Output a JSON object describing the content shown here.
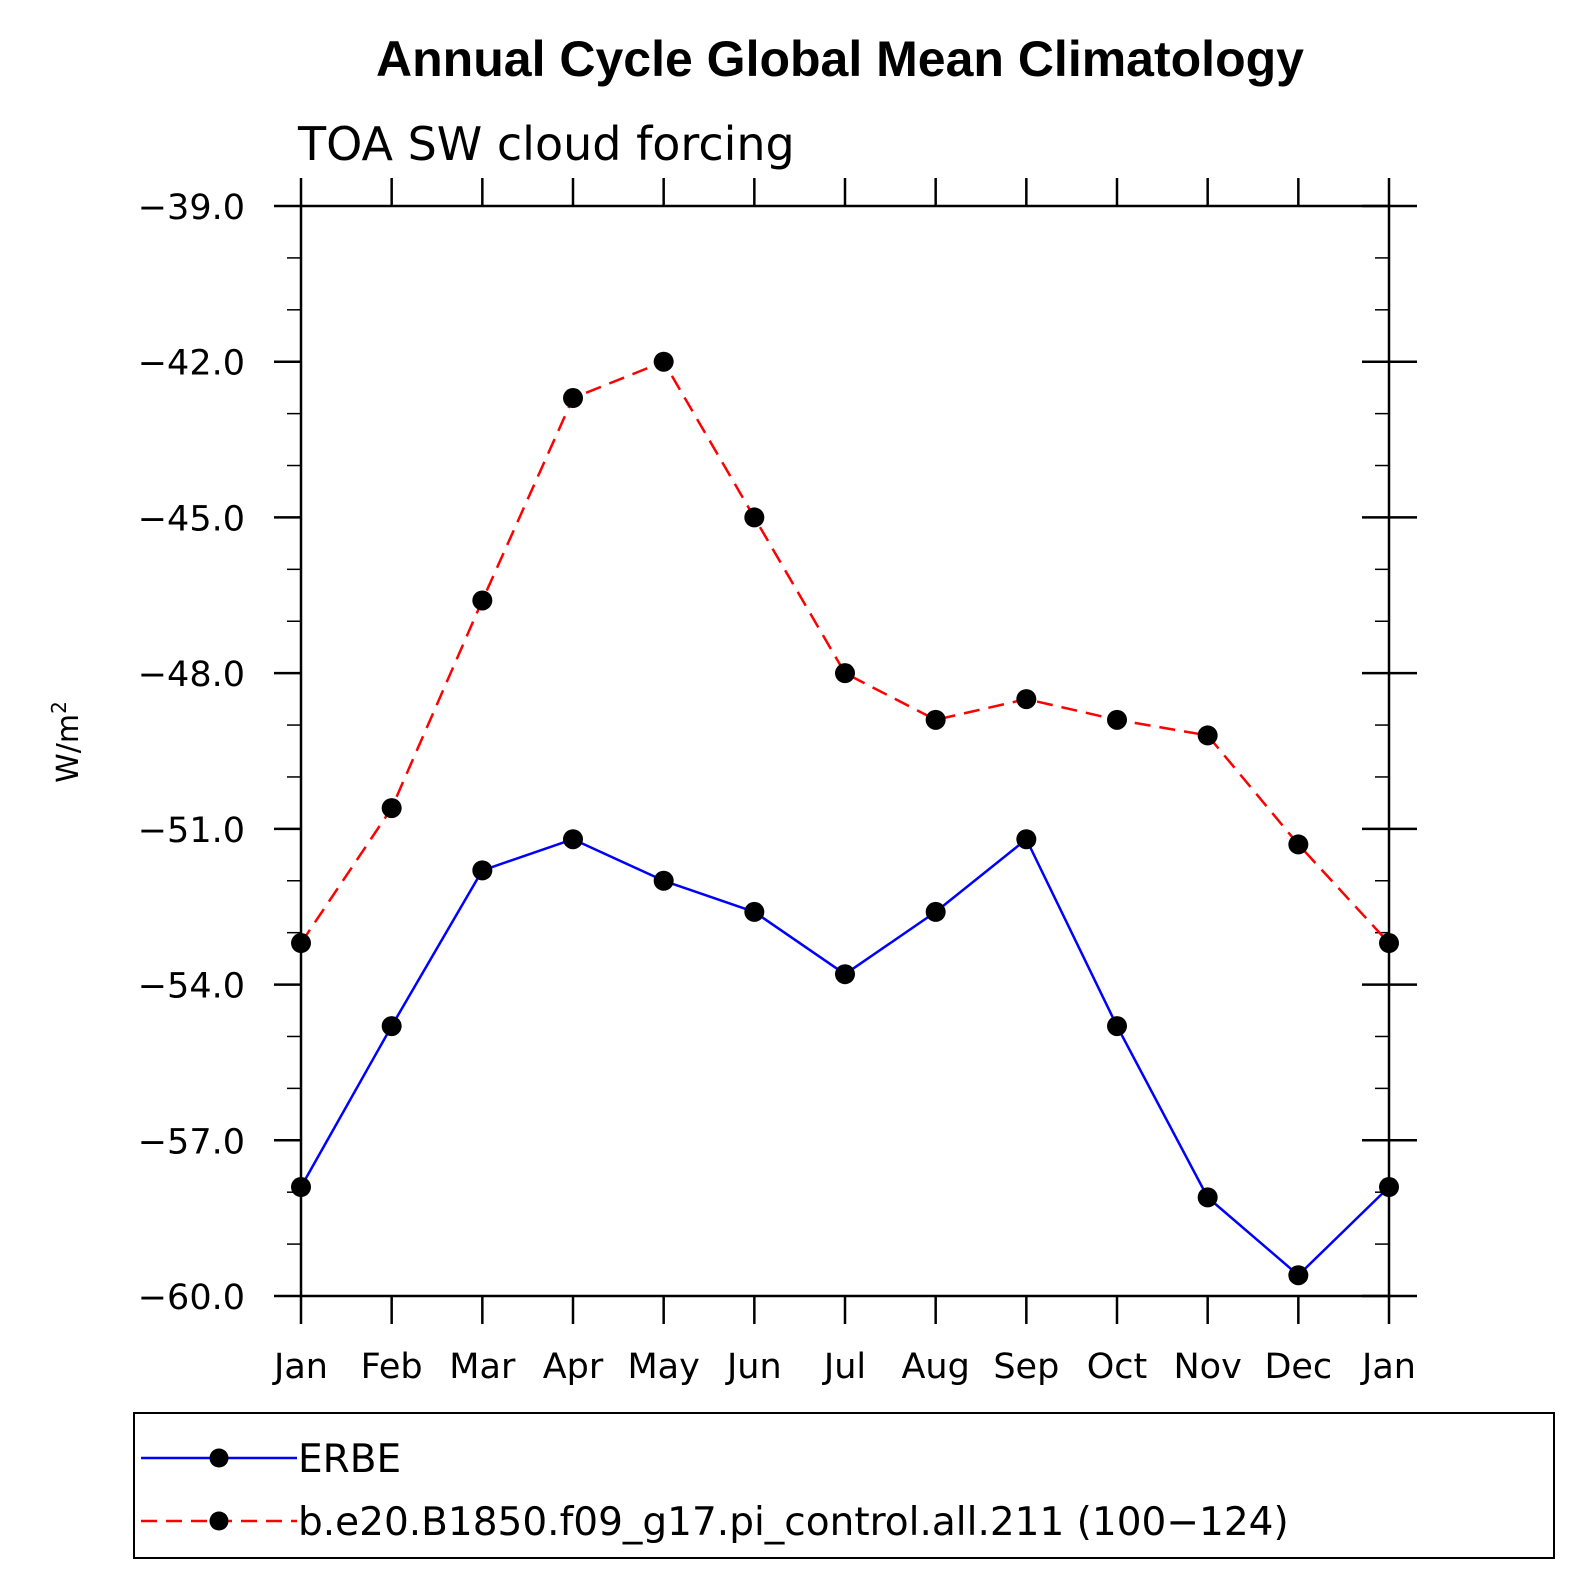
{
  "chart_data": {
    "type": "line",
    "title": "Annual Cycle Global Mean Climatology",
    "subtitle": "TOA SW cloud forcing",
    "xlabel": "",
    "ylabel": "W/m",
    "ylabel_superscript": "2",
    "categories": [
      "Jan",
      "Feb",
      "Mar",
      "Apr",
      "May",
      "Jun",
      "Jul",
      "Aug",
      "Sep",
      "Oct",
      "Nov",
      "Dec",
      "Jan"
    ],
    "ylim": [
      -60.0,
      -39.0
    ],
    "yticks": [
      "−39.0",
      "−42.0",
      "−45.0",
      "−48.0",
      "−51.0",
      "−54.0",
      "−57.0",
      "−60.0"
    ],
    "ytick_values": [
      -39.0,
      -42.0,
      -45.0,
      -48.0,
      -51.0,
      -54.0,
      -57.0,
      -60.0
    ],
    "grid": false,
    "legend_position": "bottom",
    "series": [
      {
        "name": "ERBE",
        "color": "#0000ff",
        "line_style": "solid",
        "values": [
          -57.9,
          -54.8,
          -51.8,
          -51.2,
          -52.0,
          -52.6,
          -53.8,
          -52.6,
          -51.2,
          -54.8,
          -58.1,
          -59.6,
          -57.9
        ]
      },
      {
        "name": "b.e20.B1850.f09_g17.pi_control.all.211 (100−124)",
        "color": "#ff0000",
        "line_style": "dashed",
        "values": [
          -53.2,
          -50.6,
          -46.6,
          -42.7,
          -42.0,
          -45.0,
          -48.0,
          -48.9,
          -48.5,
          -48.9,
          -49.2,
          -51.3,
          -53.2
        ]
      }
    ]
  }
}
